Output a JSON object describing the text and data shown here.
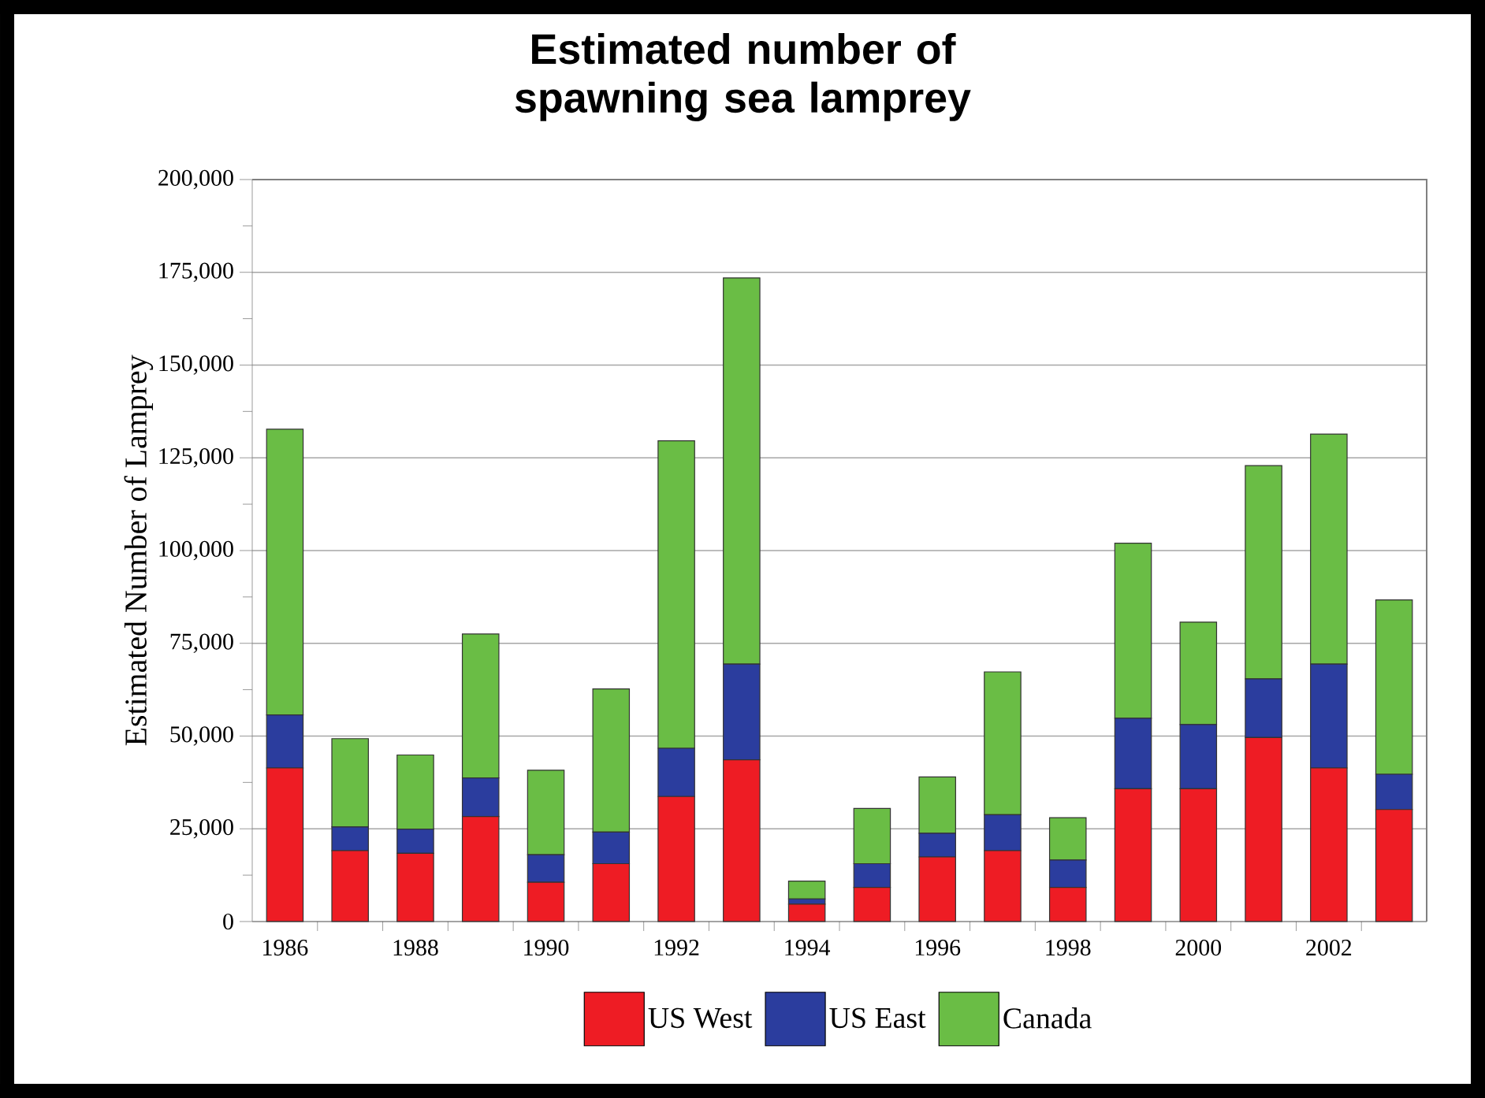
{
  "chart_data": {
    "type": "bar",
    "title": "Estimated number of spawning sea lamprey",
    "ylabel": "Estimated Number of Lamprey",
    "categories": [
      "1986",
      null,
      "1988",
      null,
      "1990",
      null,
      "1992",
      null,
      "1994",
      null,
      "1996",
      null,
      "1998",
      null,
      "2000",
      null,
      "2002",
      null
    ],
    "stacked": true,
    "series": [
      {
        "name": "US West",
        "color": "#ee1c24",
        "values": [
          41400,
          19100,
          18400,
          28300,
          10600,
          15600,
          33700,
          43600,
          4700,
          9200,
          17400,
          19100,
          9200,
          35800,
          35800,
          49600,
          41400,
          30200
        ]
      },
      {
        "name": "US East",
        "color": "#2b3d9e",
        "values": [
          14300,
          6400,
          6500,
          10400,
          7400,
          8500,
          13000,
          25800,
          1400,
          6400,
          6400,
          9700,
          7400,
          19000,
          17300,
          15800,
          28000,
          9500
        ]
      },
      {
        "name": "Canada",
        "color": "#6abd45",
        "values": [
          77000,
          23800,
          20000,
          38800,
          22800,
          38600,
          82900,
          104100,
          4800,
          14900,
          15200,
          38500,
          11400,
          47200,
          27600,
          57500,
          62000,
          47000
        ]
      }
    ],
    "ylim": [
      0,
      200000
    ],
    "yticks": [
      {
        "value": 0,
        "label": "0"
      },
      {
        "value": 25000,
        "label": "25,000"
      },
      {
        "value": 50000,
        "label": "50,000"
      },
      {
        "value": 75000,
        "label": "75,000"
      },
      {
        "value": 100000,
        "label": "100,000"
      },
      {
        "value": 125000,
        "label": "125,000"
      },
      {
        "value": 150000,
        "label": "150,000"
      },
      {
        "value": 175000,
        "label": "175,000"
      },
      {
        "value": 200000,
        "label": "200,000"
      }
    ],
    "grid": "y",
    "legend": "bottom"
  }
}
